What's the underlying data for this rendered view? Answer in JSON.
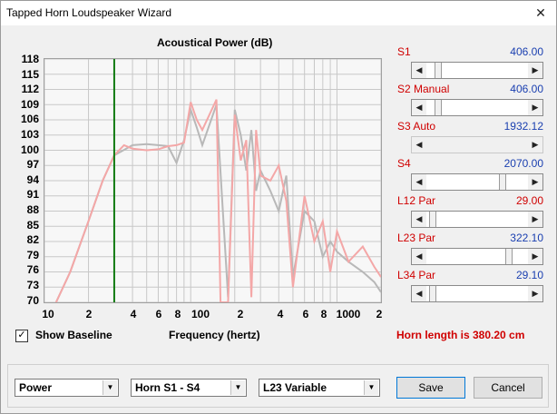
{
  "window": {
    "title": "Tapped Horn Loudspeaker Wizard",
    "close_glyph": "✕"
  },
  "chart": {
    "title": "Acoustical Power (dB)",
    "xlabel": "Frequency (hertz)",
    "y_ticks": [
      "118",
      "115",
      "112",
      "109",
      "106",
      "103",
      "100",
      "97",
      "94",
      "91",
      "88",
      "85",
      "82",
      "79",
      "76",
      "73",
      "70"
    ],
    "x_ticks": [
      "10",
      "2",
      "4",
      "6",
      "8",
      "100",
      "2",
      "4",
      "6",
      "8",
      "1000",
      "2"
    ]
  },
  "chart_data": {
    "type": "line",
    "title": "Acoustical Power (dB)",
    "xlabel": "Frequency (hertz)",
    "ylabel": "",
    "xscale": "log",
    "xlim": [
      10,
      2000
    ],
    "ylim": [
      70,
      118
    ],
    "grid": true,
    "colors": {
      "baseline": "#b8b8b8",
      "current": "#f4a7a7",
      "marker": "#107a10"
    },
    "marker_x": 30,
    "series": [
      {
        "x": [
          12,
          15,
          20,
          25,
          30,
          40,
          50,
          60,
          70,
          80,
          90,
          100,
          110,
          120,
          150,
          180,
          200,
          220,
          240,
          260,
          280,
          300,
          350,
          400,
          450,
          500,
          600,
          700,
          800,
          900,
          1000,
          1200,
          1500,
          1800,
          2000
        ],
        "y": [
          70,
          76,
          86,
          94,
          99,
          101,
          101.2,
          101,
          100.8,
          97.5,
          102,
          108,
          104.5,
          101,
          109,
          71,
          108,
          103,
          96,
          104,
          92,
          96,
          92,
          88,
          95,
          75,
          88,
          86,
          79,
          82,
          80,
          78,
          76,
          74,
          72
        ]
      },
      {
        "x": [
          12,
          15,
          20,
          25,
          30,
          35,
          40,
          50,
          60,
          70,
          80,
          90,
          100,
          110,
          120,
          150,
          160,
          180,
          200,
          220,
          240,
          260,
          280,
          300,
          350,
          400,
          450,
          500,
          600,
          700,
          800,
          900,
          1000,
          1200,
          1500,
          1800,
          2000
        ],
        "y": [
          70,
          76,
          86,
          94,
          99,
          101,
          100.3,
          100,
          100.2,
          100.8,
          101,
          101.5,
          109.5,
          106,
          104,
          110,
          70,
          70,
          107,
          98,
          102,
          71,
          104,
          95,
          94,
          97,
          90,
          73,
          91,
          82,
          86,
          76,
          84,
          78,
          81,
          77,
          75
        ]
      }
    ]
  },
  "checkbox": {
    "checked_glyph": "✓",
    "label": "Show Baseline"
  },
  "sliders": [
    {
      "label": "S1",
      "value": "406.00",
      "level": 0.09
    },
    {
      "label": "S2  Manual",
      "value": "406.00",
      "level": 0.09
    },
    {
      "label": "S3  Auto",
      "value": "1932.12",
      "level": 0.0
    },
    {
      "label": "S4",
      "value": "2070.00",
      "level": 0.77
    },
    {
      "label": "L12  Par",
      "value": "29.00",
      "level": 0.03
    },
    {
      "label": "L23  Par",
      "value": "322.10",
      "level": 0.84
    },
    {
      "label": "L34  Par",
      "value": "29.10",
      "level": 0.03
    }
  ],
  "horn_length": "Horn length is 380.20 cm",
  "controls": {
    "combo1": "Power",
    "combo2": "Horn S1 - S4",
    "combo3": "L23 Variable",
    "save": "Save",
    "cancel": "Cancel",
    "arrow_left": "◀",
    "arrow_right": "▶",
    "dropdown_glyph": "▼"
  }
}
